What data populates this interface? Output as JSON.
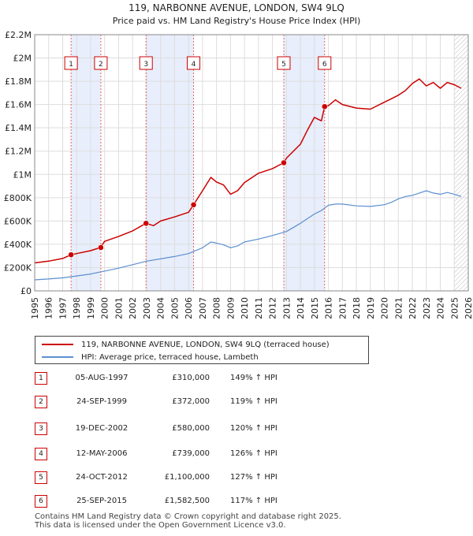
{
  "chart_data": {
    "type": "line",
    "title_line1": "119, NARBONNE AVENUE, LONDON, SW4 9LQ",
    "title_line2": "Price paid vs. HM Land Registry's House Price Index (HPI)",
    "xlim": [
      1995,
      2026
    ],
    "ylim": [
      0,
      2200000
    ],
    "yticks": [
      0,
      200000,
      400000,
      600000,
      800000,
      1000000,
      1200000,
      1400000,
      1600000,
      1800000,
      2000000,
      2200000
    ],
    "ytick_labels": [
      "£0",
      "£200K",
      "£400K",
      "£600K",
      "£800K",
      "£1M",
      "£1.2M",
      "£1.4M",
      "£1.6M",
      "£1.8M",
      "£2M",
      "£2.2M"
    ],
    "xticks": [
      1995,
      1996,
      1997,
      1998,
      1999,
      2000,
      2001,
      2002,
      2003,
      2004,
      2005,
      2006,
      2007,
      2008,
      2009,
      2010,
      2011,
      2012,
      2013,
      2014,
      2015,
      2016,
      2017,
      2018,
      2019,
      2020,
      2021,
      2022,
      2023,
      2024,
      2025,
      2026
    ],
    "shaded_periods": [
      [
        1997.6,
        1999.7
      ],
      [
        2002.96,
        2006.36
      ],
      [
        2012.8,
        2015.73
      ]
    ],
    "hatched_after": 2025.0,
    "series": [
      {
        "name": "119, NARBONNE AVENUE, LONDON, SW4 9LQ (terraced house)",
        "color": "#cc0000",
        "x": [
          1995,
          1996,
          1997,
          1997.6,
          1998,
          1999,
          1999.7,
          2000,
          2001,
          2002,
          2002.96,
          2003.5,
          2004,
          2005,
          2006,
          2006.36,
          2007,
          2007.6,
          2008,
          2008.5,
          2009,
          2009.5,
          2010,
          2011,
          2012,
          2012.8,
          2013,
          2014,
          2014.5,
          2015,
          2015.5,
          2015.73,
          2016,
          2016.5,
          2017,
          2018,
          2019,
          2020,
          2020.5,
          2021,
          2021.5,
          2022,
          2022.5,
          2023,
          2023.5,
          2024,
          2024.5,
          2025,
          2025.5
        ],
        "y": [
          240000,
          255000,
          278000,
          310000,
          320000,
          345000,
          372000,
          425000,
          468000,
          515000,
          580000,
          560000,
          600000,
          635000,
          675000,
          739000,
          860000,
          975000,
          935000,
          910000,
          830000,
          860000,
          930000,
          1010000,
          1050000,
          1100000,
          1140000,
          1260000,
          1380000,
          1490000,
          1460000,
          1582500,
          1590000,
          1640000,
          1600000,
          1570000,
          1560000,
          1620000,
          1650000,
          1680000,
          1720000,
          1780000,
          1820000,
          1760000,
          1790000,
          1740000,
          1790000,
          1770000,
          1740000
        ]
      },
      {
        "name": "HPI: Average price, terraced house, Lambeth",
        "color": "#5b8fd0",
        "x": [
          1995,
          1996,
          1997,
          1998,
          1999,
          2000,
          2001,
          2002,
          2003,
          2004,
          2005,
          2006,
          2007,
          2007.6,
          2008,
          2008.5,
          2009,
          2009.5,
          2010,
          2011,
          2012,
          2013,
          2014,
          2015,
          2015.5,
          2016,
          2016.5,
          2017,
          2018,
          2019,
          2020,
          2020.5,
          2021,
          2021.5,
          2022,
          2022.5,
          2023,
          2023.5,
          2024,
          2024.5,
          2025,
          2025.5
        ],
        "y": [
          95000,
          102000,
          112000,
          128000,
          145000,
          170000,
          195000,
          225000,
          255000,
          275000,
          295000,
          320000,
          370000,
          420000,
          410000,
          395000,
          370000,
          385000,
          420000,
          445000,
          475000,
          510000,
          580000,
          660000,
          690000,
          735000,
          745000,
          745000,
          730000,
          725000,
          740000,
          760000,
          790000,
          810000,
          820000,
          840000,
          860000,
          840000,
          830000,
          845000,
          830000,
          810000
        ]
      }
    ],
    "sales": [
      {
        "label": "1",
        "x": 1997.6,
        "price": 310000
      },
      {
        "label": "2",
        "x": 1999.73,
        "price": 372000
      },
      {
        "label": "3",
        "x": 2002.96,
        "price": 580000
      },
      {
        "label": "4",
        "x": 2006.36,
        "price": 739000
      },
      {
        "label": "5",
        "x": 2012.81,
        "price": 1100000
      },
      {
        "label": "6",
        "x": 2015.73,
        "price": 1582500
      }
    ]
  },
  "legend": {
    "property_label": "119, NARBONNE AVENUE, LONDON, SW4 9LQ (terraced house)",
    "hpi_label": "HPI: Average price, terraced house, Lambeth",
    "property_color": "#cc0000",
    "hpi_color": "#5b8fd0"
  },
  "sales_table": [
    {
      "num": "1",
      "date": "05-AUG-1997",
      "price": "£310,000",
      "hpi": "149% ↑ HPI"
    },
    {
      "num": "2",
      "date": "24-SEP-1999",
      "price": "£372,000",
      "hpi": "119% ↑ HPI"
    },
    {
      "num": "3",
      "date": "19-DEC-2002",
      "price": "£580,000",
      "hpi": "120% ↑ HPI"
    },
    {
      "num": "4",
      "date": "12-MAY-2006",
      "price": "£739,000",
      "hpi": "126% ↑ HPI"
    },
    {
      "num": "5",
      "date": "24-OCT-2012",
      "price": "£1,100,000",
      "hpi": "127% ↑ HPI"
    },
    {
      "num": "6",
      "date": "25-SEP-2015",
      "price": "£1,582,500",
      "hpi": "117% ↑ HPI"
    }
  ],
  "footer": {
    "line1": "Contains HM Land Registry data © Crown copyright and database right 2025.",
    "line2": "This data is licensed under the Open Government Licence v3.0."
  }
}
